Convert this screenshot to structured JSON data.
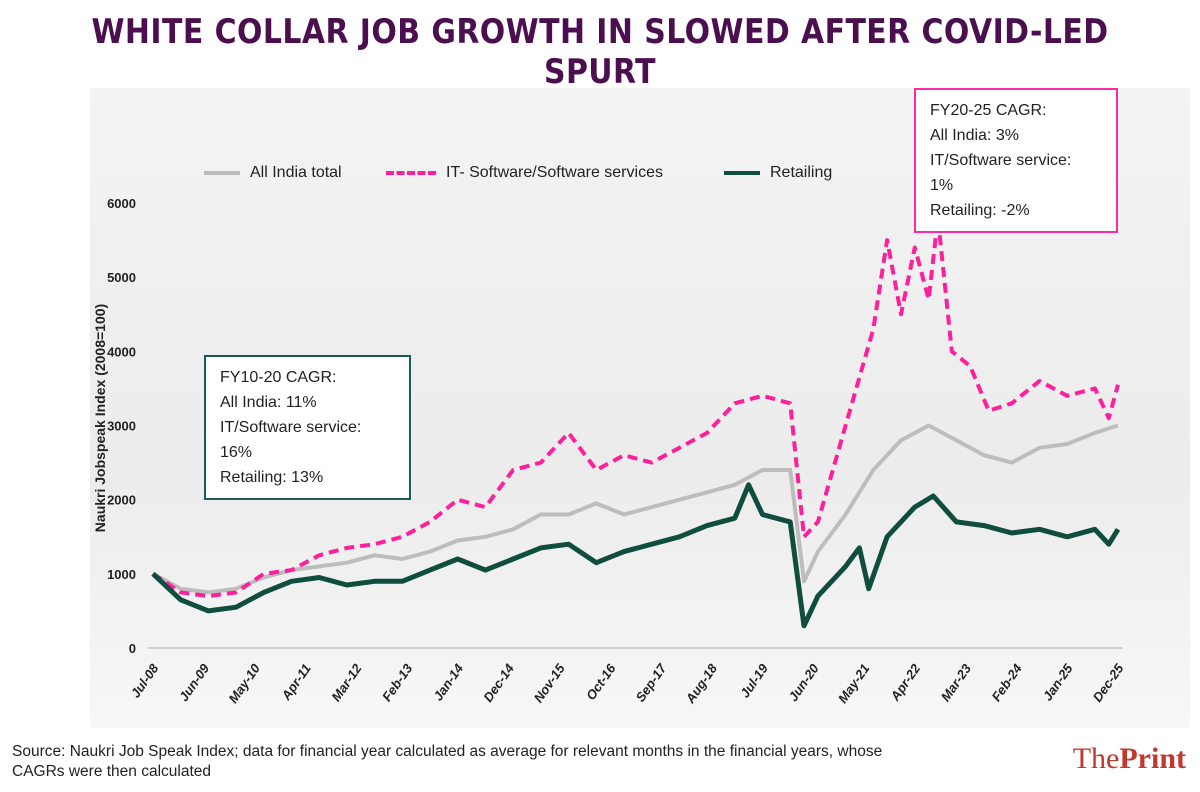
{
  "title": "WHITE COLLAR JOB GROWTH IN SLOWED AFTER COVID-LED SPURT",
  "chart_data": {
    "type": "line",
    "title": "WHITE COLLAR JOB GROWTH IN SLOWED AFTER COVID-LED SPURT",
    "xlabel": "",
    "ylabel": "Naukri Jobspeak Index (2008=100)",
    "ylim": [
      0,
      6000
    ],
    "yticks": [
      0,
      1000,
      2000,
      3000,
      4000,
      5000,
      6000
    ],
    "xticks": [
      "Jul-08",
      "Jun-09",
      "May-10",
      "Apr-11",
      "Mar-12",
      "Feb-13",
      "Jan-14",
      "Dec-14",
      "Nov-15",
      "Oct-16",
      "Sep-17",
      "Aug-18",
      "Jul-19",
      "Jun-20",
      "May-21",
      "Apr-22",
      "Mar-23",
      "Feb-24",
      "Jan-25",
      "Dec-25"
    ],
    "legend_position": "top",
    "grid": false,
    "series": [
      {
        "name": "All India total",
        "color": "#bdbdbd",
        "style": "solid",
        "x": [
          "2008-07",
          "2009-01",
          "2009-07",
          "2010-01",
          "2010-07",
          "2011-01",
          "2011-07",
          "2012-01",
          "2012-07",
          "2013-01",
          "2013-07",
          "2014-01",
          "2014-07",
          "2015-01",
          "2015-07",
          "2016-01",
          "2016-07",
          "2017-01",
          "2017-07",
          "2018-01",
          "2018-07",
          "2019-01",
          "2019-07",
          "2020-01",
          "2020-04",
          "2020-07",
          "2021-01",
          "2021-07",
          "2022-01",
          "2022-07",
          "2023-01",
          "2023-07",
          "2024-01",
          "2024-07",
          "2025-01",
          "2025-07",
          "2025-12"
        ],
        "values": [
          1000,
          800,
          750,
          800,
          950,
          1050,
          1100,
          1150,
          1250,
          1200,
          1300,
          1450,
          1500,
          1600,
          1800,
          1800,
          1950,
          1800,
          1900,
          2000,
          2100,
          2200,
          2400,
          2400,
          900,
          1300,
          1800,
          2400,
          2800,
          3000,
          2800,
          2600,
          2500,
          2700,
          2750,
          2900,
          3000
        ]
      },
      {
        "name": "IT- Software/Software services",
        "color": "#ff1f9a",
        "style": "dashed",
        "x": [
          "2008-07",
          "2009-01",
          "2009-07",
          "2010-01",
          "2010-07",
          "2011-01",
          "2011-07",
          "2012-01",
          "2012-07",
          "2013-01",
          "2013-07",
          "2014-01",
          "2014-07",
          "2015-01",
          "2015-07",
          "2016-01",
          "2016-07",
          "2017-01",
          "2017-07",
          "2018-01",
          "2018-07",
          "2019-01",
          "2019-07",
          "2020-01",
          "2020-04",
          "2020-07",
          "2021-01",
          "2021-07",
          "2021-10",
          "2022-01",
          "2022-04",
          "2022-07",
          "2022-09",
          "2022-12",
          "2023-04",
          "2023-08",
          "2024-01",
          "2024-07",
          "2025-01",
          "2025-07",
          "2025-10",
          "2025-12"
        ],
        "values": [
          1000,
          750,
          700,
          750,
          1000,
          1050,
          1250,
          1350,
          1400,
          1500,
          1700,
          2000,
          1900,
          2400,
          2500,
          2900,
          2400,
          2600,
          2500,
          2700,
          2900,
          3300,
          3400,
          3300,
          1500,
          1700,
          3000,
          4300,
          5500,
          4500,
          5400,
          4700,
          5800,
          4000,
          3800,
          3200,
          3300,
          3600,
          3400,
          3500,
          3100,
          3550
        ]
      },
      {
        "name": "Retailing",
        "color": "#0f4d3f",
        "style": "solid",
        "x": [
          "2008-07",
          "2009-01",
          "2009-07",
          "2010-01",
          "2010-07",
          "2011-01",
          "2011-07",
          "2012-01",
          "2012-07",
          "2013-01",
          "2013-07",
          "2014-01",
          "2014-07",
          "2015-01",
          "2015-07",
          "2016-01",
          "2016-07",
          "2017-01",
          "2017-07",
          "2018-01",
          "2018-07",
          "2019-01",
          "2019-04",
          "2019-07",
          "2020-01",
          "2020-04",
          "2020-07",
          "2021-01",
          "2021-04",
          "2021-06",
          "2021-10",
          "2022-04",
          "2022-08",
          "2023-01",
          "2023-07",
          "2024-01",
          "2024-07",
          "2025-01",
          "2025-07",
          "2025-10",
          "2025-12"
        ],
        "values": [
          1000,
          650,
          500,
          550,
          750,
          900,
          950,
          850,
          900,
          900,
          1050,
          1200,
          1050,
          1200,
          1350,
          1400,
          1150,
          1300,
          1400,
          1500,
          1650,
          1750,
          2200,
          1800,
          1700,
          300,
          700,
          1100,
          1350,
          800,
          1500,
          1900,
          2050,
          1700,
          1650,
          1550,
          1600,
          1500,
          1600,
          1400,
          1600
        ]
      }
    ],
    "annotations": [
      {
        "lines": [
          "FY10-20 CAGR:",
          "All India: 11%",
          "IT/Software service:",
          "16%",
          "Retailing: 13%"
        ]
      },
      {
        "lines": [
          "FY20-25 CAGR:",
          "All India: 3%",
          "IT/Software service:",
          "1%",
          "Retailing: -2%"
        ]
      }
    ]
  },
  "source": "Source: Naukri Job Speak Index; data for financial year calculated as average for relevant months in the financial years, whose CAGRs were then calculated",
  "logo": {
    "the": "The",
    "print": "Print"
  }
}
